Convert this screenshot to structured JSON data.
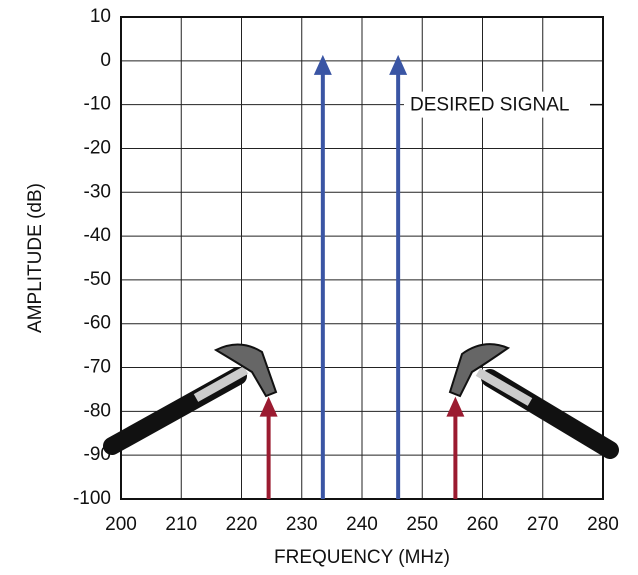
{
  "chart_data": {
    "type": "stem",
    "x_label": "FREQUENCY (MHz)",
    "y_label": "AMPLITUDE (dB)",
    "annotation": "DESIRED SIGNAL",
    "series": [
      {
        "color": "#3a55a4",
        "x": [
          233.5,
          246
        ],
        "values": [
          0,
          0
        ]
      },
      {
        "color": "#9b1b30",
        "x": [
          224.5,
          255.5
        ],
        "values": [
          -78,
          -78
        ]
      }
    ],
    "xlim": [
      200,
      280
    ],
    "xticks": [
      200,
      210,
      220,
      230,
      240,
      250,
      260,
      270,
      280
    ],
    "ylim": [
      -100,
      10
    ],
    "yticks": [
      10,
      0,
      -10,
      -20,
      -30,
      -40,
      -50,
      -60,
      -70,
      -80,
      -90,
      -100
    ],
    "grid": true
  }
}
